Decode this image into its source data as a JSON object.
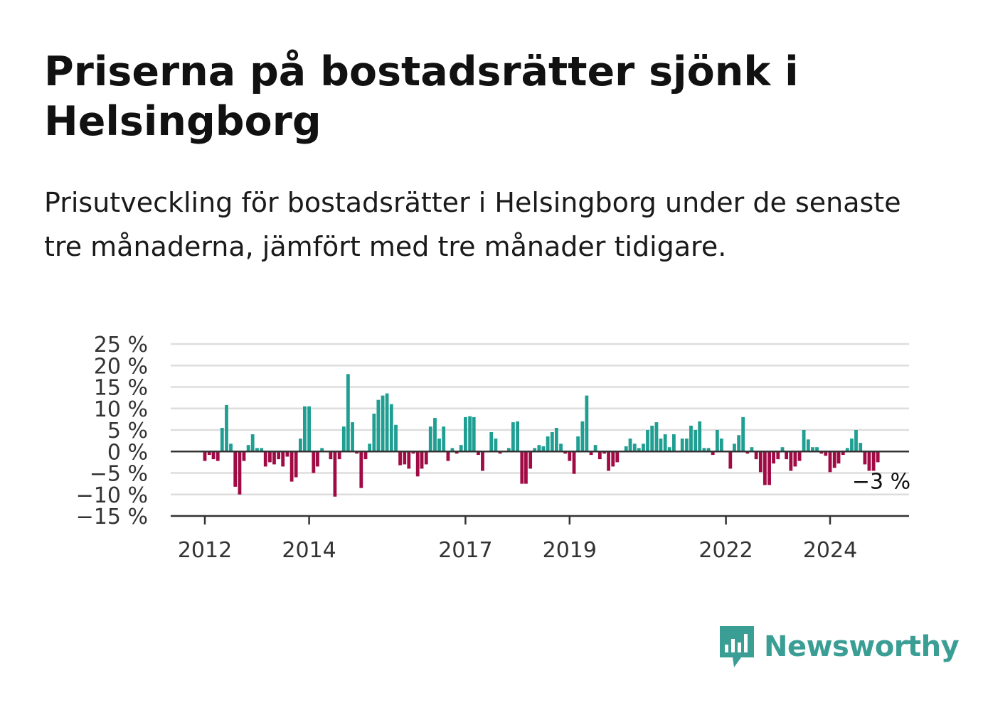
{
  "title": "Priserna på bostadsrätter sjönk i Helsingborg",
  "subtitle": "Prisutveckling för bostadsrätter i Helsingborg under de senaste tre månaderna, jämfört med tre månader tidigare.",
  "brand": {
    "name": "Newsworthy",
    "color": "#3a9e95",
    "icon": "newsworthy-logo-icon"
  },
  "chart_data": {
    "type": "bar",
    "x_ticks": [
      "2012",
      "2014",
      "2017",
      "2019",
      "2022",
      "2024"
    ],
    "y_ticks": [
      25,
      20,
      15,
      10,
      5,
      0,
      -5,
      -10,
      -15
    ],
    "y_tick_labels": [
      "25 %",
      "20 %",
      "15 %",
      "10 %",
      "5 %",
      "0 %",
      "−5 %",
      "−10 %",
      "−15 %"
    ],
    "ylim": [
      -15,
      25
    ],
    "grid": true,
    "end_label": "−3 %",
    "colors": {
      "positive": "#1f9e92",
      "negative": "#a10b45",
      "grid": "#dddddd",
      "axis": "#333333"
    },
    "values": [
      -2.2,
      -0.8,
      -1.8,
      -2.2,
      5.5,
      10.8,
      1.8,
      -8.2,
      -10.0,
      -2.2,
      1.5,
      4.0,
      0.8,
      0.8,
      -3.5,
      -2.5,
      -3.0,
      -1.8,
      -3.5,
      -1.2,
      -7.0,
      -6.0,
      3.0,
      10.5,
      10.5,
      -5.0,
      -3.5,
      0.8,
      -0.2,
      -1.8,
      -10.5,
      -1.8,
      5.8,
      18.0,
      6.8,
      -0.5,
      -8.5,
      -1.8,
      1.8,
      8.8,
      12.0,
      13.0,
      13.5,
      11.0,
      6.2,
      -3.2,
      -3.0,
      -4.0,
      -0.5,
      -5.8,
      -4.0,
      -3.0,
      5.8,
      7.8,
      3.0,
      5.8,
      -2.2,
      0.8,
      -0.5,
      1.5,
      8.0,
      8.2,
      8.0,
      -0.8,
      -4.5,
      -0.2,
      4.5,
      3.0,
      -0.5,
      -0.2,
      0.8,
      6.8,
      7.0,
      -7.5,
      -7.5,
      -4.0,
      0.8,
      1.5,
      1.2,
      3.5,
      4.5,
      5.5,
      1.8,
      -0.5,
      -2.2,
      -5.2,
      3.5,
      7.0,
      13.0,
      -0.8,
      1.5,
      -1.8,
      -0.5,
      -4.5,
      -3.5,
      -2.5,
      -0.2,
      1.2,
      3.0,
      1.8,
      0.8,
      1.8,
      5.0,
      6.0,
      6.8,
      3.0,
      4.0,
      1.0,
      4.0,
      -0.2,
      3.0,
      3.0,
      6.0,
      5.0,
      7.0,
      0.8,
      0.8,
      -0.8,
      5.0,
      3.0,
      -0.2,
      -4.0,
      1.8,
      3.8,
      8.0,
      -0.5,
      1.0,
      -1.8,
      -4.8,
      -7.8,
      -7.8,
      -2.8,
      -1.8,
      1.0,
      -1.8,
      -4.5,
      -3.5,
      -2.2,
      5.0,
      2.8,
      1.0,
      1.0,
      -0.5,
      -1.0,
      -4.8,
      -3.8,
      -2.8,
      -0.8,
      0.8,
      3.0,
      5.0,
      2.0,
      -3.0,
      -4.5,
      -4.5,
      -2.5
    ]
  }
}
